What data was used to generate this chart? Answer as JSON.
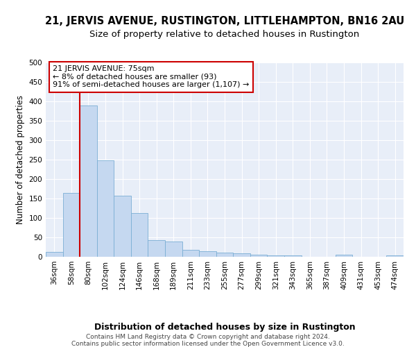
{
  "title": "21, JERVIS AVENUE, RUSTINGTON, LITTLEHAMPTON, BN16 2AU",
  "subtitle": "Size of property relative to detached houses in Rustington",
  "xlabel": "Distribution of detached houses by size in Rustington",
  "ylabel": "Number of detached properties",
  "categories": [
    "36sqm",
    "58sqm",
    "80sqm",
    "102sqm",
    "124sqm",
    "146sqm",
    "168sqm",
    "189sqm",
    "211sqm",
    "233sqm",
    "255sqm",
    "277sqm",
    "299sqm",
    "321sqm",
    "343sqm",
    "365sqm",
    "387sqm",
    "409sqm",
    "431sqm",
    "453sqm",
    "474sqm"
  ],
  "values": [
    13,
    165,
    390,
    248,
    158,
    113,
    43,
    40,
    18,
    15,
    10,
    9,
    6,
    4,
    4,
    0,
    0,
    5,
    0,
    0,
    4
  ],
  "bar_color": "#c5d8f0",
  "bar_edge_color": "#7aaed4",
  "vline_x": 2.0,
  "annotation_title": "21 JERVIS AVENUE: 75sqm",
  "annotation_line1": "← 8% of detached houses are smaller (93)",
  "annotation_line2": "91% of semi-detached houses are larger (1,107) →",
  "annotation_box_facecolor": "#ffffff",
  "annotation_box_edgecolor": "#cc0000",
  "vline_color": "#cc0000",
  "ylim": [
    0,
    500
  ],
  "yticks": [
    0,
    50,
    100,
    150,
    200,
    250,
    300,
    350,
    400,
    450,
    500
  ],
  "footer_line1": "Contains HM Land Registry data © Crown copyright and database right 2024.",
  "footer_line2": "Contains public sector information licensed under the Open Government Licence v3.0.",
  "background_color": "#ffffff",
  "plot_bg_color": "#e8eef8",
  "grid_color": "#ffffff",
  "title_fontsize": 10.5,
  "subtitle_fontsize": 9.5,
  "ylabel_fontsize": 8.5,
  "xlabel_fontsize": 9,
  "tick_fontsize": 7.5,
  "footer_fontsize": 6.5,
  "annot_fontsize": 8
}
